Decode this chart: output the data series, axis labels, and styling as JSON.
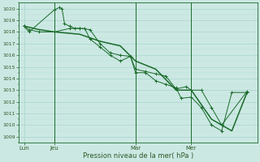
{
  "xlabel": "Pression niveau de la mer( hPa )",
  "ylim": [
    1008.5,
    1020.5
  ],
  "yticks": [
    1009,
    1010,
    1011,
    1012,
    1013,
    1014,
    1015,
    1016,
    1017,
    1018,
    1019,
    1020
  ],
  "bg_color": "#cce8e3",
  "grid_color_major": "#a8d4ce",
  "grid_color_minor": "#bcdfd9",
  "line_color": "#1a6b2a",
  "tick_label_color": "#2d5a27",
  "xlabel_color": "#2d5a27",
  "day_labels": [
    "Lun",
    "Jeu",
    "Mar",
    "Mer"
  ],
  "day_positions": [
    0,
    6,
    22,
    33
  ],
  "xlim": [
    -1,
    46
  ],
  "vlines": [
    6,
    22,
    33
  ],
  "series1_x": [
    0,
    1,
    6,
    7,
    7.5,
    8,
    9,
    10,
    11,
    12,
    13,
    15,
    17,
    19,
    21,
    22,
    24,
    26,
    28,
    30,
    31,
    33,
    35,
    37,
    39,
    41,
    44
  ],
  "series1_y": [
    1018.5,
    1018.0,
    1019.9,
    1020.1,
    1020.0,
    1018.7,
    1018.5,
    1018.3,
    1018.3,
    1018.3,
    1017.4,
    1016.7,
    1016.0,
    1015.5,
    1015.9,
    1014.5,
    1014.5,
    1013.8,
    1013.5,
    1013.2,
    1012.3,
    1012.4,
    1011.5,
    1010.0,
    1009.5,
    1012.8,
    1012.8
  ],
  "series2_x": [
    0,
    1,
    3,
    6,
    9,
    11,
    13,
    15,
    17,
    19,
    21,
    22,
    24,
    26,
    28,
    30,
    32,
    33,
    35,
    37,
    39,
    44
  ],
  "series2_y": [
    1018.5,
    1018.2,
    1018.0,
    1018.0,
    1018.3,
    1018.3,
    1018.2,
    1017.0,
    1016.2,
    1016.0,
    1015.9,
    1014.8,
    1014.6,
    1014.4,
    1014.2,
    1013.1,
    1013.3,
    1013.0,
    1013.0,
    1011.5,
    1010.0,
    1012.9
  ],
  "series3_x": [
    0,
    3,
    6,
    11,
    15,
    19,
    22,
    26,
    30,
    33,
    37,
    41,
    44
  ],
  "series3_y": [
    1018.5,
    1018.2,
    1018.0,
    1017.8,
    1017.2,
    1016.8,
    1015.5,
    1014.8,
    1013.0,
    1013.0,
    1010.5,
    1009.5,
    1012.8
  ]
}
